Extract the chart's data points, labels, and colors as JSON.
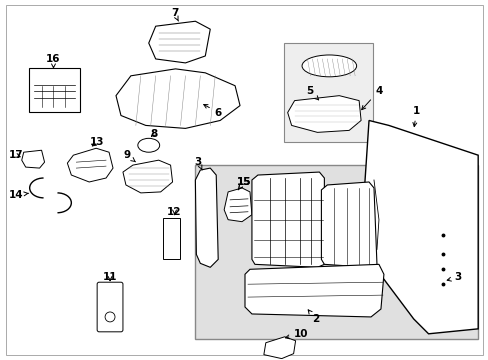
{
  "bg": "#ffffff",
  "border_color": "#999999",
  "inset_bg": "#e0e0e0",
  "inset_border": "#888888",
  "line_color": "#000000",
  "part_fill": "#ffffff",
  "part_fill2": "#f0f0f0",
  "label_fs": 7.5,
  "arrow_lw": 0.7,
  "part_lw": 0.8
}
